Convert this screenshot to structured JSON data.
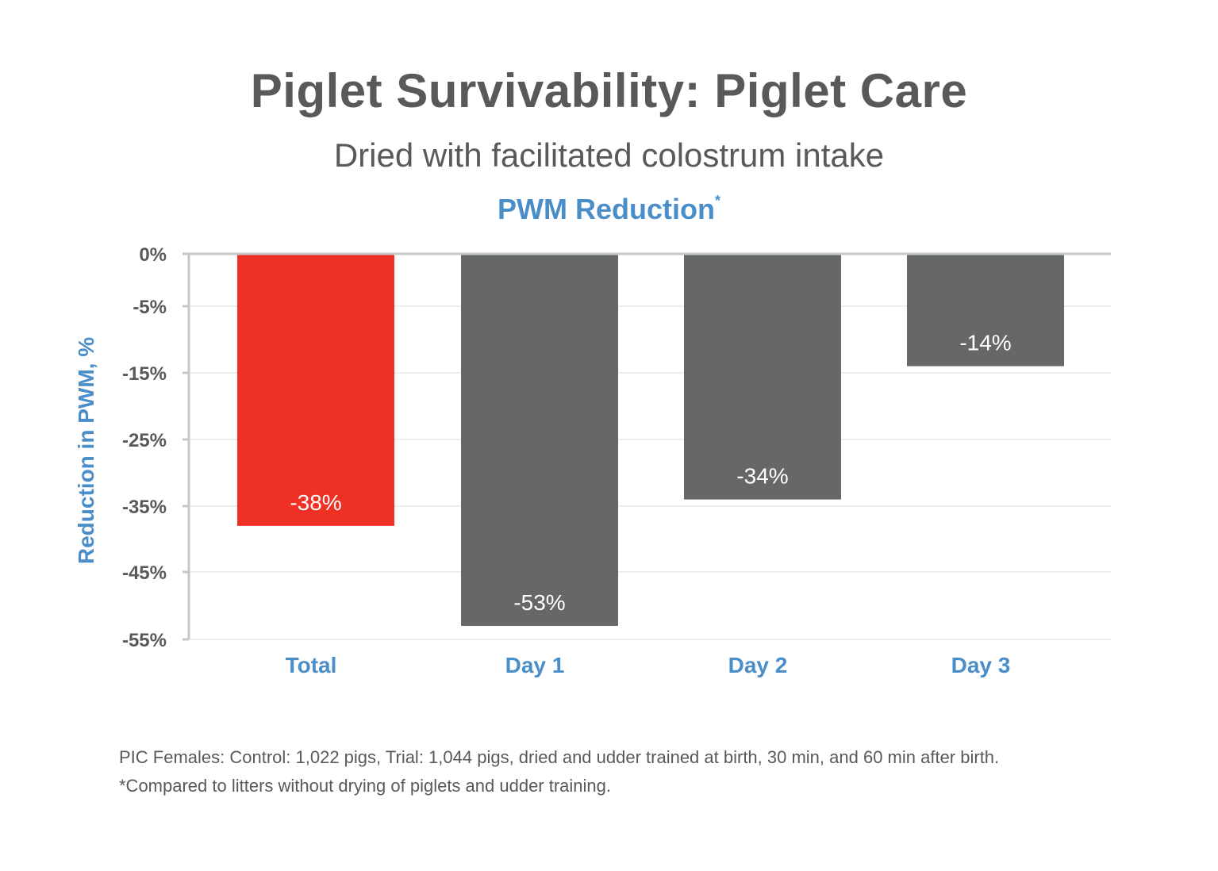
{
  "title": "Piglet Survivability: Piglet Care",
  "subtitle": "Dried with facilitated colostrum intake",
  "footnotes": [
    "PIC Females: Control: 1,022 pigs, Trial: 1,044 pigs, dried and udder trained at birth, 30 min, and 60 min after birth.",
    "*Compared to litters without drying of piglets and udder training."
  ],
  "chart_data": {
    "type": "bar",
    "title": "PWM Reduction",
    "title_superscript": "*",
    "ylabel": "Reduction in PWM, %",
    "xlabel": "",
    "categories": [
      "Total",
      "Day 1",
      "Day 2",
      "Day 3"
    ],
    "values": [
      -38,
      -53,
      -34,
      -14
    ],
    "data_labels": [
      "-38%",
      "-53%",
      "-34%",
      "-14%"
    ],
    "bar_colors": [
      "#ee3124",
      "#666769",
      "#666769",
      "#666769"
    ],
    "ytick_labels": [
      "0%",
      "-5%",
      "-15%",
      "-25%",
      "-35%",
      "-45%",
      "-55%"
    ],
    "grid": true,
    "legend": "none",
    "colors": {
      "text": "#58595b",
      "accent": "#4a8ec9",
      "axis": "#c3c8c8",
      "grid": "#eeeeee",
      "label": "#ffffff"
    }
  }
}
